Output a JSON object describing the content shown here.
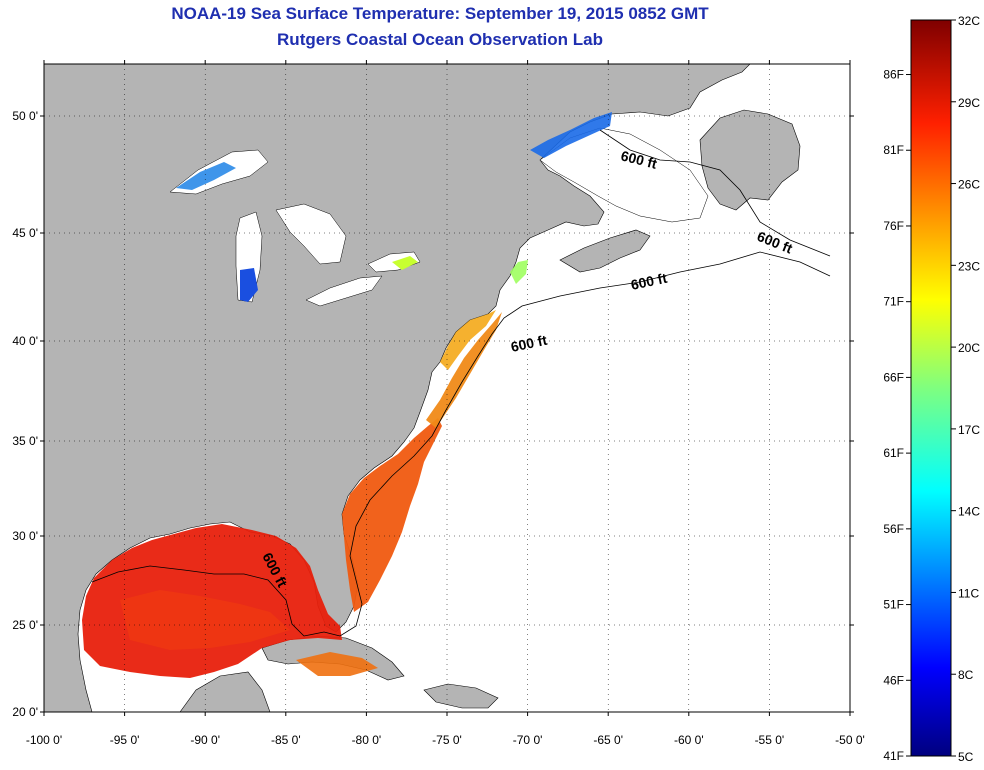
{
  "header": {
    "title": "NOAA-19 Sea Surface Temperature:  September 19, 2015 0852 GMT",
    "subtitle": "Rutgers Coastal Ocean Observation Lab"
  },
  "map": {
    "lon_ticks": [
      "-100 0'",
      "-95 0'",
      "-90 0'",
      "-85 0'",
      "-80 0'",
      "-75 0'",
      "-70 0'",
      "-65 0'",
      "-60 0'",
      "-55 0'",
      "-50 0'"
    ],
    "lat_ticks": [
      "50 0'",
      "45 0'",
      "40 0'",
      "35 0'",
      "30 0'",
      "25 0'",
      "20 0'"
    ],
    "lon_range": [
      -100,
      -50
    ],
    "lat_range": [
      20,
      52.5
    ],
    "isobath_labels": [
      "600 ft",
      "600 ft",
      "600 ft",
      "600 ft",
      "600 ft"
    ],
    "colors": {
      "land": "#b4b4b4",
      "ocean_no_data": "#ffffff",
      "title": "#1f2fb0"
    }
  },
  "colorbar": {
    "celsius_labels": [
      "32C",
      "29C",
      "26C",
      "23C",
      "20C",
      "17C",
      "14C",
      "11C",
      "8C",
      "5C"
    ],
    "fahrenheit_labels": [
      "86F",
      "81F",
      "76F",
      "71F",
      "66F",
      "61F",
      "56F",
      "51F",
      "46F",
      "41F"
    ],
    "range_c": [
      5,
      32
    ],
    "colormap": "jet"
  }
}
